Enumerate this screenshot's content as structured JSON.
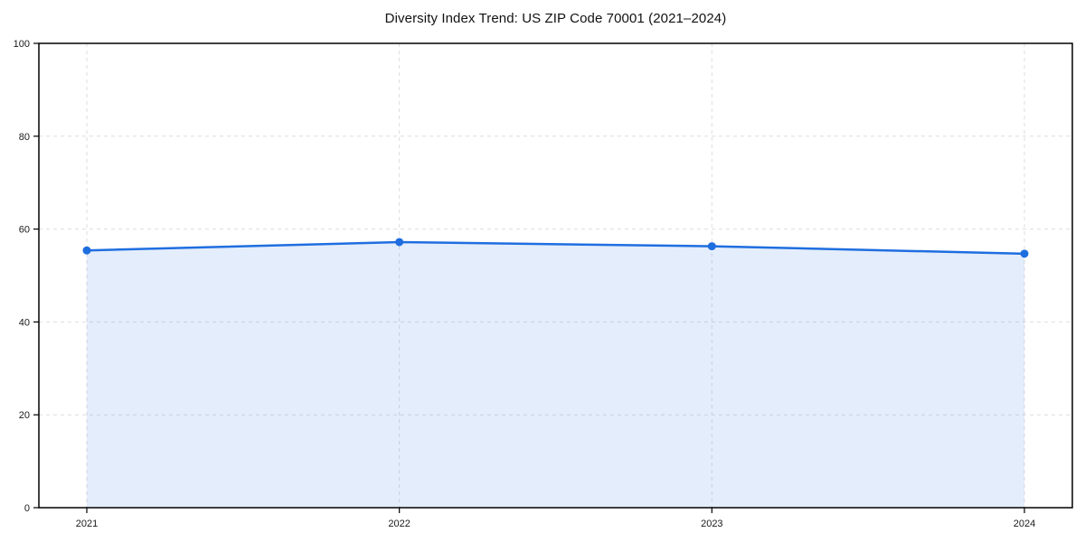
{
  "chart_data": {
    "type": "area",
    "title": "Diversity Index Trend: US ZIP Code 70001 (2021–2024)",
    "categories": [
      "2021",
      "2022",
      "2023",
      "2024"
    ],
    "series": [
      {
        "name": "diversity_index",
        "values": [
          55.4,
          57.2,
          56.3,
          54.7
        ]
      }
    ],
    "xlabel": "",
    "ylabel": "",
    "ylim": [
      0,
      100
    ],
    "yticks": [
      0,
      20,
      40,
      60,
      80,
      100
    ],
    "grid": true,
    "grid_style": "dashed",
    "legend_position": "none",
    "marker": "circle",
    "colors": {
      "line": "#1f6ee0",
      "marker": "#1f6ee0",
      "fill": "rgba(31,110,224,0.12)",
      "grid": "#dddddd",
      "spine": "#000000",
      "text": "#1a1a1a",
      "background": "#ffffff"
    }
  }
}
